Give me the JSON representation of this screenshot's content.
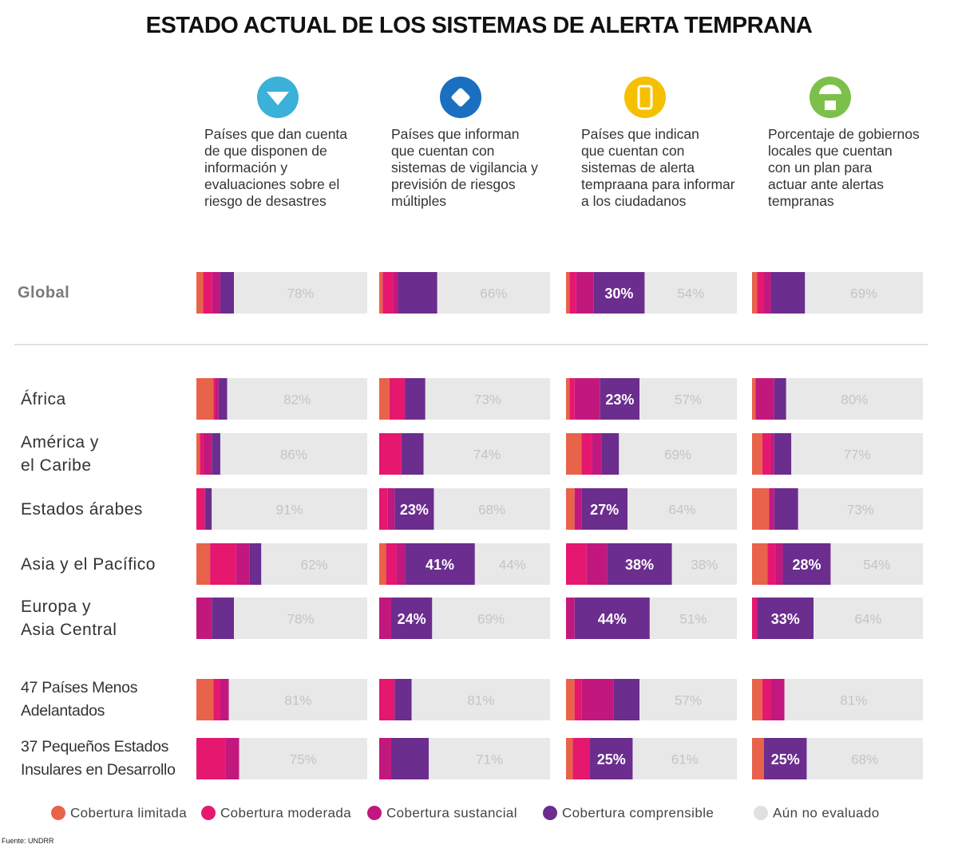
{
  "title": "ESTADO ACTUAL DE LOS SISTEMAS DE ALERTA TEMPRANA",
  "source": "Fuente: UNDRR",
  "chart_data": {
    "type": "bar",
    "orientation": "horizontal",
    "stacked": true,
    "xlim": [
      0,
      100
    ],
    "categories": [
      "Global",
      "África",
      "América y\nel Caribe",
      "Estados árabes",
      "Asia y el Pacífico",
      "Europa y\nAsia Central",
      "47 Países Menos\nAdelantados",
      "37 Pequeños Estados\nInsulares en Desarrollo"
    ],
    "series": [
      {
        "name": "Cobertura limitada",
        "color": "#e8634a"
      },
      {
        "name": "Cobertura moderada",
        "color": "#e5176f"
      },
      {
        "name": "Cobertura sustancial",
        "color": "#c2187e"
      },
      {
        "name": "Cobertura comprensible",
        "color": "#6b2d8e"
      },
      {
        "name": "Aún no evaluado",
        "color": "#e8e8e8"
      }
    ],
    "panels": [
      {
        "title": "Países que dan cuenta\nde que disponen de\ninformación y\nevaluaciones sobre el\nriesgo de desastres",
        "series": [
          {
            "values": [
              4,
              10,
              2,
              0,
              8,
              0,
              10,
              0
            ]
          },
          {
            "values": [
              5,
              1,
              2,
              5,
              15,
              0,
              4,
              17
            ]
          },
          {
            "values": [
              5,
              2,
              5,
              0,
              8,
              9,
              5,
              8
            ]
          },
          {
            "values": [
              8,
              5,
              5,
              4,
              7,
              13,
              0,
              0
            ]
          },
          {
            "values": [
              78,
              82,
              86,
              91,
              62,
              78,
              81,
              75
            ],
            "value_labels": [
              "78%",
              "82%",
              "86%",
              "91%",
              "62%",
              "78%",
              "81%",
              "75%"
            ]
          }
        ]
      },
      {
        "title": "Países que informan\nque cuentan con\nsistemas de vigilancia y\nprevisión de riesgos\nmúltiples",
        "series": [
          {
            "values": [
              2,
              6,
              0,
              0,
              4,
              0,
              0,
              0
            ]
          },
          {
            "values": [
              6,
              9,
              13,
              5,
              6,
              0,
              9,
              0
            ]
          },
          {
            "values": [
              3,
              0,
              0,
              4,
              5,
              7,
              0,
              7
            ]
          },
          {
            "values": [
              23,
              12,
              13,
              23,
              41,
              24,
              10,
              22
            ],
            "value_labels": [
              null,
              null,
              null,
              "23%",
              "41%",
              "24%",
              null,
              null
            ]
          },
          {
            "values": [
              66,
              73,
              74,
              68,
              44,
              69,
              81,
              71
            ],
            "value_labels": [
              "66%",
              "73%",
              "74%",
              "68%",
              "44%",
              "69%",
              "81%",
              "71%"
            ]
          }
        ]
      },
      {
        "title": "Países que indican\nque cuentan con\nsistemas de alerta\ntempraana para informar\na los ciudadanos",
        "series": [
          {
            "values": [
              2,
              2,
              9,
              5,
              0,
              0,
              5,
              4
            ]
          },
          {
            "values": [
              4,
              3,
              6,
              0,
              12,
              0,
              4,
              10
            ]
          },
          {
            "values": [
              10,
              15,
              6,
              4,
              12,
              5,
              19,
              0
            ]
          },
          {
            "values": [
              30,
              23,
              10,
              27,
              38,
              44,
              15,
              25
            ],
            "value_labels": [
              "30%",
              "23%",
              null,
              "27%",
              "38%",
              "44%",
              null,
              "25%"
            ]
          },
          {
            "values": [
              54,
              57,
              69,
              64,
              38,
              51,
              57,
              61
            ],
            "value_labels": [
              "54%",
              "57%",
              "69%",
              "64%",
              "38%",
              "51%",
              "57%",
              "61%"
            ]
          }
        ]
      },
      {
        "title": "Porcentaje de gobiernos\nlocales que cuentan\ncon un plan para\nactuar ante alertas\ntempranas",
        "series": [
          {
            "values": [
              3,
              2,
              6,
              10,
              9,
              0,
              6,
              7
            ]
          },
          {
            "values": [
              4,
              0,
              5,
              0,
              5,
              3,
              5,
              0
            ]
          },
          {
            "values": [
              4,
              11,
              2,
              3,
              4,
              0,
              8,
              0
            ]
          },
          {
            "values": [
              20,
              7,
              10,
              14,
              28,
              33,
              0,
              25
            ],
            "value_labels": [
              null,
              null,
              null,
              null,
              "28%",
              "33%",
              null,
              "25%"
            ]
          },
          {
            "values": [
              69,
              80,
              77,
              73,
              54,
              64,
              81,
              68
            ],
            "value_labels": [
              "69%",
              "80%",
              "77%",
              "73%",
              "54%",
              "64%",
              "81%",
              "68%"
            ]
          }
        ]
      }
    ]
  }
}
